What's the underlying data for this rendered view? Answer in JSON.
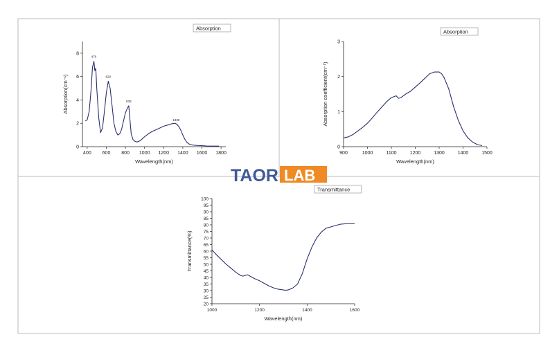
{
  "logo": {
    "part1": "TAOR",
    "part2": "LAB",
    "color1": "#3f5a99",
    "color2": "#f08a24"
  },
  "colors": {
    "line": "#2a2f6b",
    "frame": "#bbbbbb"
  },
  "chart_data": [
    {
      "type": "line",
      "legend": "Absorption",
      "xlabel": "Wavelength(nm)",
      "ylabel": "Absorption(cm⁻¹)",
      "xlim": [
        350,
        1850
      ],
      "ylim": [
        0,
        9
      ],
      "xticks": [
        400,
        600,
        800,
        1000,
        1200,
        1400,
        1600,
        1800
      ],
      "yticks": [
        0,
        2,
        4,
        6,
        8
      ],
      "annotations": [
        {
          "x": 470,
          "y": 7.3,
          "text": "470"
        },
        {
          "x": 620,
          "y": 5.6,
          "text": "620"
        },
        {
          "x": 835,
          "y": 3.5,
          "text": "835"
        },
        {
          "x": 1330,
          "y": 1.9,
          "text": "1330"
        }
      ],
      "x": [
        380,
        400,
        420,
        440,
        455,
        470,
        480,
        490,
        500,
        520,
        540,
        560,
        580,
        600,
        620,
        640,
        660,
        680,
        700,
        720,
        740,
        760,
        780,
        800,
        820,
        835,
        845,
        860,
        880,
        900,
        920,
        940,
        960,
        980,
        1000,
        1040,
        1080,
        1120,
        1160,
        1200,
        1240,
        1280,
        1320,
        1340,
        1360,
        1380,
        1400,
        1420,
        1440,
        1460,
        1480,
        1500,
        1550,
        1600,
        1650,
        1700,
        1750,
        1780
      ],
      "y": [
        2.2,
        2.3,
        3.0,
        4.8,
        6.8,
        7.3,
        6.5,
        6.7,
        5.0,
        2.5,
        1.2,
        1.6,
        3.0,
        4.6,
        5.6,
        5.0,
        3.5,
        2.0,
        1.3,
        1.0,
        1.1,
        1.5,
        2.2,
        2.9,
        3.3,
        3.5,
        2.5,
        1.1,
        0.6,
        0.45,
        0.4,
        0.45,
        0.55,
        0.7,
        0.85,
        1.1,
        1.3,
        1.45,
        1.6,
        1.75,
        1.85,
        1.95,
        2.0,
        1.9,
        1.7,
        1.4,
        1.0,
        0.65,
        0.4,
        0.25,
        0.18,
        0.14,
        0.1,
        0.08,
        0.06,
        0.05,
        0.05,
        0.05
      ]
    },
    {
      "type": "line",
      "legend": "Absorption",
      "xlabel": "Wavelength(nm)",
      "ylabel": "Absorption coefficient(cm⁻¹)",
      "xlim": [
        900,
        1500
      ],
      "ylim": [
        0,
        3
      ],
      "xticks": [
        900,
        1000,
        1100,
        1200,
        1300,
        1400,
        1500
      ],
      "yticks": [
        0,
        1,
        2,
        3
      ],
      "x": [
        900,
        920,
        940,
        960,
        980,
        1000,
        1020,
        1040,
        1060,
        1080,
        1100,
        1120,
        1130,
        1140,
        1160,
        1180,
        1200,
        1220,
        1240,
        1260,
        1280,
        1300,
        1310,
        1320,
        1340,
        1360,
        1380,
        1400,
        1420,
        1440,
        1460,
        1480
      ],
      "y": [
        0.25,
        0.28,
        0.35,
        0.45,
        0.55,
        0.67,
        0.82,
        0.98,
        1.13,
        1.28,
        1.4,
        1.45,
        1.38,
        1.4,
        1.5,
        1.58,
        1.7,
        1.82,
        1.95,
        2.08,
        2.13,
        2.13,
        2.08,
        1.98,
        1.65,
        1.15,
        0.75,
        0.45,
        0.25,
        0.13,
        0.06,
        0.03
      ]
    },
    {
      "type": "line",
      "legend": "Transmittance",
      "xlabel": "Wavelength(nm)",
      "ylabel": "Transmittance(%)",
      "xlim": [
        1000,
        1600
      ],
      "ylim": [
        20,
        100
      ],
      "xticks": [
        1000,
        1200,
        1400,
        1600
      ],
      "yticks": [
        20,
        25,
        30,
        35,
        40,
        45,
        50,
        55,
        60,
        65,
        70,
        75,
        80,
        85,
        90,
        95,
        100
      ],
      "x": [
        1000,
        1020,
        1040,
        1060,
        1080,
        1100,
        1120,
        1130,
        1140,
        1150,
        1160,
        1180,
        1200,
        1220,
        1240,
        1260,
        1280,
        1300,
        1310,
        1320,
        1340,
        1360,
        1380,
        1400,
        1420,
        1440,
        1460,
        1480,
        1500,
        1520,
        1540,
        1560,
        1580,
        1600
      ],
      "y": [
        61,
        57,
        53.5,
        50,
        47,
        44,
        41.5,
        41,
        41.5,
        42,
        41,
        39,
        37.5,
        35.5,
        33.5,
        32,
        31,
        30.5,
        30.2,
        30.5,
        32,
        35,
        43,
        54,
        63,
        70,
        74.5,
        77.5,
        78.5,
        79.5,
        80.5,
        80.8,
        80.8,
        80.8
      ]
    }
  ]
}
